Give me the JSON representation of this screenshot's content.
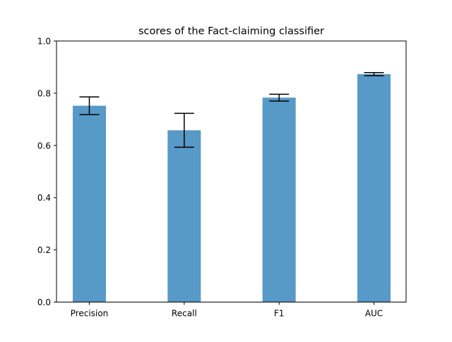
{
  "chart_data": {
    "type": "bar",
    "title": "scores of the Fact-claiming classifier",
    "categories": [
      "Precision",
      "Recall",
      "F1",
      "AUC"
    ],
    "values": [
      0.752,
      0.658,
      0.783,
      0.873
    ],
    "errors": [
      0.034,
      0.065,
      0.013,
      0.006
    ],
    "xlabel": "",
    "ylabel": "",
    "ylim": [
      0,
      1.0
    ],
    "yticks": [
      0.0,
      0.2,
      0.4,
      0.6,
      0.8,
      1.0
    ],
    "ytick_labels": [
      "0.0",
      "0.2",
      "0.4",
      "0.6",
      "0.8",
      "1.0"
    ],
    "grid": false,
    "colors": {
      "bar": "#5799c7",
      "error": "#000000",
      "axis": "#000000"
    }
  }
}
